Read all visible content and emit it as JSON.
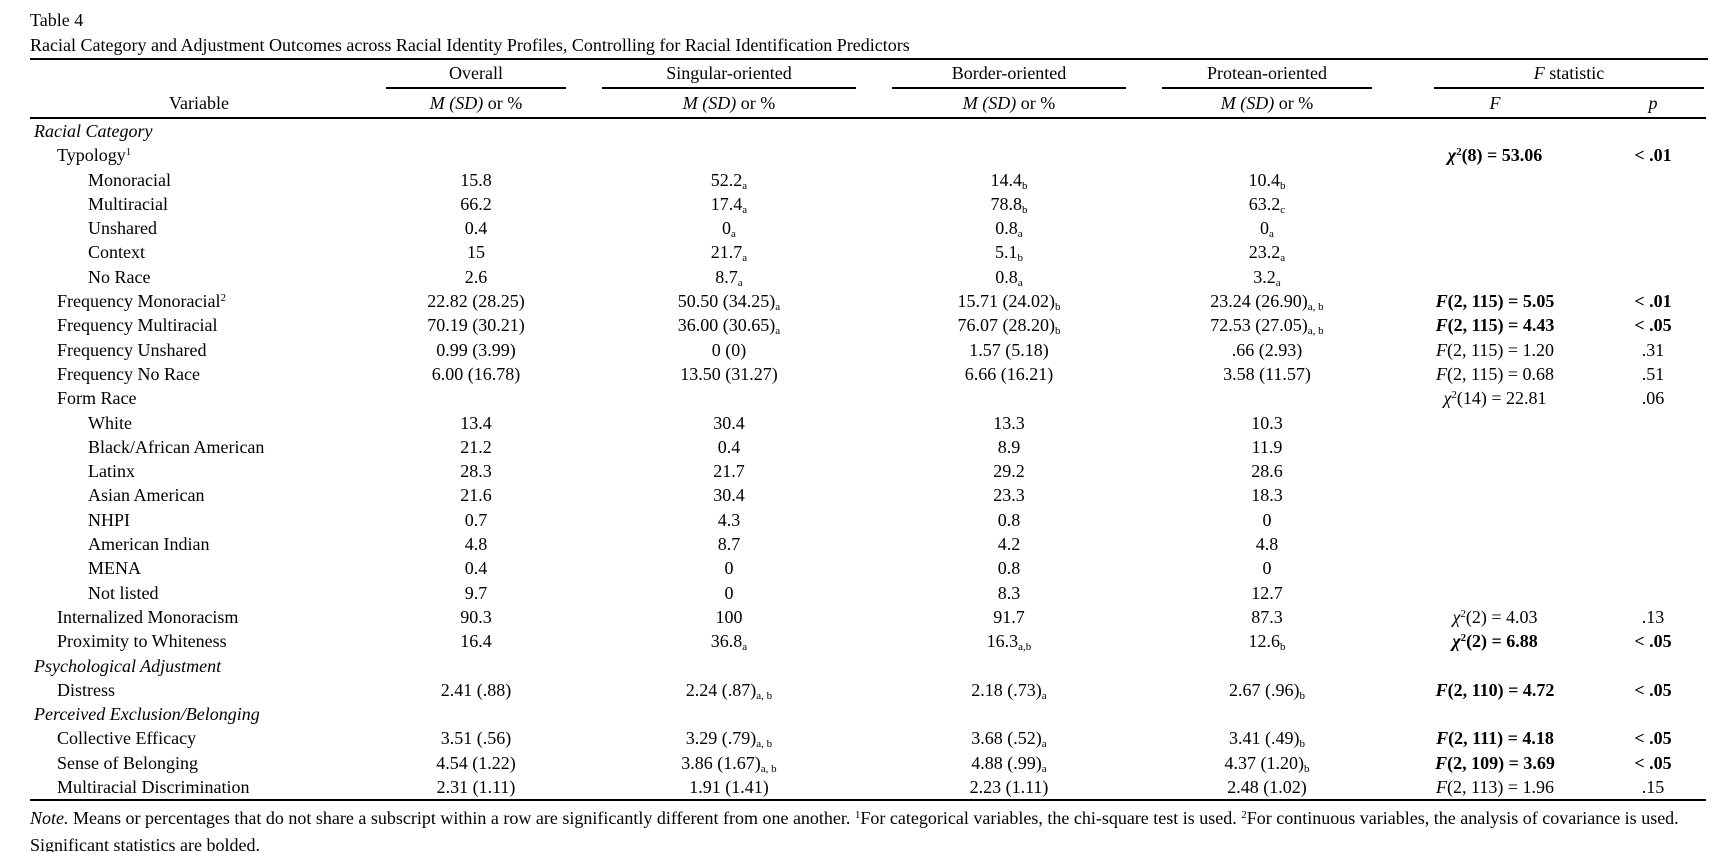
{
  "colors": {
    "text": "#000000",
    "background": "#ffffff"
  },
  "document": {
    "table_label": "Table 4",
    "table_title": "Racial Category and Adjustment Outcomes across Racial Identity Profiles, Controlling for Racial Identification Predictors"
  },
  "table": {
    "group_headers": {
      "overall": "Overall",
      "singular": "Singular-oriented",
      "border": "Border-oriented",
      "protean": "Protean-oriented",
      "fstat_italic": "F",
      "fstat_rest": " statistic"
    },
    "sub_headers": {
      "variable": "Variable",
      "msd_italic": "M (SD)",
      "msd_rest": " or %",
      "f": "F",
      "p": "p"
    },
    "rows": [
      {
        "label": "Racial Category",
        "indent": 0,
        "italic": true,
        "vals": [
          null,
          null,
          null,
          null
        ],
        "stat": null,
        "p": null,
        "bold": false
      },
      {
        "label": "Typology",
        "sup": "1",
        "indent": 1,
        "vals": [
          null,
          null,
          null,
          null
        ],
        "stat": {
          "sym": "chi2",
          "rest": "(8) = 53.06"
        },
        "p": "< .01",
        "bold": true
      },
      {
        "label": "Monoracial",
        "indent": 2,
        "vals": [
          {
            "v": "15.8"
          },
          {
            "v": "52.2",
            "s": "a"
          },
          {
            "v": "14.4",
            "s": "b"
          },
          {
            "v": "10.4",
            "s": "b"
          }
        ]
      },
      {
        "label": "Multiracial",
        "indent": 2,
        "vals": [
          {
            "v": "66.2"
          },
          {
            "v": "17.4",
            "s": "a"
          },
          {
            "v": "78.8",
            "s": "b"
          },
          {
            "v": "63.2",
            "s": "c"
          }
        ]
      },
      {
        "label": "Unshared",
        "indent": 2,
        "vals": [
          {
            "v": "0.4"
          },
          {
            "v": "0",
            "s": "a"
          },
          {
            "v": "0.8",
            "s": "a"
          },
          {
            "v": "0",
            "s": "a"
          }
        ]
      },
      {
        "label": "Context",
        "indent": 2,
        "vals": [
          {
            "v": "15"
          },
          {
            "v": "21.7",
            "s": "a"
          },
          {
            "v": "5.1",
            "s": "b"
          },
          {
            "v": "23.2",
            "s": "a"
          }
        ]
      },
      {
        "label": "No Race",
        "indent": 2,
        "vals": [
          {
            "v": "2.6"
          },
          {
            "v": "8.7",
            "s": "a"
          },
          {
            "v": "0.8",
            "s": "a"
          },
          {
            "v": "3.2",
            "s": "a"
          }
        ]
      },
      {
        "label": "Frequency Monoracial",
        "sup": "2",
        "indent": 1,
        "vals": [
          {
            "v": "22.82 (28.25)"
          },
          {
            "v": "50.50 (34.25)",
            "s": "a"
          },
          {
            "v": "15.71 (24.02)",
            "s": "b"
          },
          {
            "v": "23.24 (26.90)",
            "s": "a, b"
          }
        ],
        "stat": {
          "sym": "F",
          "rest": "(2, 115) = 5.05"
        },
        "p": "< .01",
        "bold": true
      },
      {
        "label": "Frequency Multiracial",
        "indent": 1,
        "vals": [
          {
            "v": "70.19 (30.21)"
          },
          {
            "v": "36.00 (30.65)",
            "s": "a"
          },
          {
            "v": "76.07 (28.20)",
            "s": "b"
          },
          {
            "v": "72.53 (27.05)",
            "s": "a, b"
          }
        ],
        "stat": {
          "sym": "F",
          "rest": "(2, 115) = 4.43"
        },
        "p": "< .05",
        "bold": true
      },
      {
        "label": "Frequency Unshared",
        "indent": 1,
        "vals": [
          {
            "v": "0.99 (3.99)"
          },
          {
            "v": "0 (0)"
          },
          {
            "v": "1.57 (5.18)"
          },
          {
            "v": ".66 (2.93)"
          }
        ],
        "stat": {
          "sym": "F",
          "rest": "(2, 115) = 1.20"
        },
        "p": ".31",
        "bold": false
      },
      {
        "label": "Frequency No Race",
        "indent": 1,
        "vals": [
          {
            "v": "6.00 (16.78)"
          },
          {
            "v": "13.50 (31.27)"
          },
          {
            "v": "6.66 (16.21)"
          },
          {
            "v": "3.58 (11.57)"
          }
        ],
        "stat": {
          "sym": "F",
          "rest": "(2, 115) = 0.68"
        },
        "p": ".51",
        "bold": false
      },
      {
        "label": "Form Race",
        "indent": 1,
        "vals": [
          null,
          null,
          null,
          null
        ],
        "stat": {
          "sym": "chi2",
          "rest": "(14) = 22.81"
        },
        "p": ".06",
        "bold": false
      },
      {
        "label": "White",
        "indent": 2,
        "vals": [
          {
            "v": "13.4"
          },
          {
            "v": "30.4"
          },
          {
            "v": "13.3"
          },
          {
            "v": "10.3"
          }
        ]
      },
      {
        "label": "Black/African American",
        "indent": 2,
        "vals": [
          {
            "v": "21.2"
          },
          {
            "v": "0.4"
          },
          {
            "v": "8.9"
          },
          {
            "v": "11.9"
          }
        ]
      },
      {
        "label": "Latinx",
        "indent": 2,
        "vals": [
          {
            "v": "28.3"
          },
          {
            "v": "21.7"
          },
          {
            "v": "29.2"
          },
          {
            "v": "28.6"
          }
        ]
      },
      {
        "label": "Asian American",
        "indent": 2,
        "vals": [
          {
            "v": "21.6"
          },
          {
            "v": "30.4"
          },
          {
            "v": "23.3"
          },
          {
            "v": "18.3"
          }
        ]
      },
      {
        "label": "NHPI",
        "indent": 2,
        "vals": [
          {
            "v": "0.7"
          },
          {
            "v": "4.3"
          },
          {
            "v": "0.8"
          },
          {
            "v": "0"
          }
        ]
      },
      {
        "label": "American Indian",
        "indent": 2,
        "vals": [
          {
            "v": "4.8"
          },
          {
            "v": "8.7"
          },
          {
            "v": "4.2"
          },
          {
            "v": "4.8"
          }
        ]
      },
      {
        "label": "MENA",
        "indent": 2,
        "vals": [
          {
            "v": "0.4"
          },
          {
            "v": "0"
          },
          {
            "v": "0.8"
          },
          {
            "v": "0"
          }
        ]
      },
      {
        "label": "Not listed",
        "indent": 2,
        "vals": [
          {
            "v": "9.7"
          },
          {
            "v": "0"
          },
          {
            "v": "8.3"
          },
          {
            "v": "12.7"
          }
        ]
      },
      {
        "label": "Internalized Monoracism",
        "indent": 1,
        "vals": [
          {
            "v": "90.3"
          },
          {
            "v": "100"
          },
          {
            "v": "91.7"
          },
          {
            "v": "87.3"
          }
        ],
        "stat": {
          "sym": "chi2",
          "rest": "(2) = 4.03"
        },
        "p": ".13",
        "bold": false
      },
      {
        "label": "Proximity to Whiteness",
        "indent": 1,
        "vals": [
          {
            "v": "16.4"
          },
          {
            "v": "36.8",
            "s": "a"
          },
          {
            "v": "16.3",
            "s": "a,b"
          },
          {
            "v": "12.6",
            "s": "b"
          }
        ],
        "stat": {
          "sym": "chi2",
          "rest": "(2) = 6.88"
        },
        "p": "< .05",
        "bold": true
      },
      {
        "label": "Psychological Adjustment",
        "indent": 0,
        "italic": true,
        "vals": [
          null,
          null,
          null,
          null
        ]
      },
      {
        "label": "Distress",
        "indent": 1,
        "vals": [
          {
            "v": "2.41 (.88)"
          },
          {
            "v": "2.24 (.87)",
            "s": "a, b"
          },
          {
            "v": "2.18 (.73)",
            "s": "a"
          },
          {
            "v": "2.67 (.96)",
            "s": "b"
          }
        ],
        "stat": {
          "sym": "F",
          "rest": "(2, 110) = 4.72"
        },
        "p": "< .05",
        "bold": true
      },
      {
        "label": "Perceived Exclusion/Belonging",
        "indent": 0,
        "italic": true,
        "vals": [
          null,
          null,
          null,
          null
        ]
      },
      {
        "label": "Collective Efficacy",
        "indent": 1,
        "vals": [
          {
            "v": "3.51 (.56)"
          },
          {
            "v": "3.29 (.79)",
            "s": "a, b"
          },
          {
            "v": "3.68 (.52)",
            "s": "a"
          },
          {
            "v": "3.41 (.49)",
            "s": "b"
          }
        ],
        "stat": {
          "sym": "F",
          "rest": "(2, 111) = 4.18"
        },
        "p": "< .05",
        "bold": true
      },
      {
        "label": "Sense of Belonging",
        "indent": 1,
        "vals": [
          {
            "v": "4.54 (1.22)"
          },
          {
            "v": "3.86 (1.67)",
            "s": "a, b"
          },
          {
            "v": "4.88 (.99)",
            "s": "a"
          },
          {
            "v": "4.37 (1.20)",
            "s": "b"
          }
        ],
        "stat": {
          "sym": "F",
          "rest": "(2, 109) = 3.69"
        },
        "p": "< .05",
        "bold": true
      },
      {
        "label": "Multiracial Discrimination",
        "indent": 1,
        "vals": [
          {
            "v": "2.31 (1.11)"
          },
          {
            "v": "1.91 (1.41)"
          },
          {
            "v": "2.23 (1.11)"
          },
          {
            "v": "2.48 (1.02)"
          }
        ],
        "stat": {
          "sym": "F",
          "rest": "(2, 113) = 1.96"
        },
        "p": ".15",
        "bold": false
      }
    ]
  },
  "note": {
    "label": "Note.",
    "text1": " Means or percentages that do not share a subscript within a row are significantly different from one another. ",
    "sup1": "1",
    "text2": "For categorical variables, the chi-square test is used. ",
    "sup2": "2",
    "text3": "For continuous variables, the analysis of covariance is used. Significant statistics are bolded."
  }
}
